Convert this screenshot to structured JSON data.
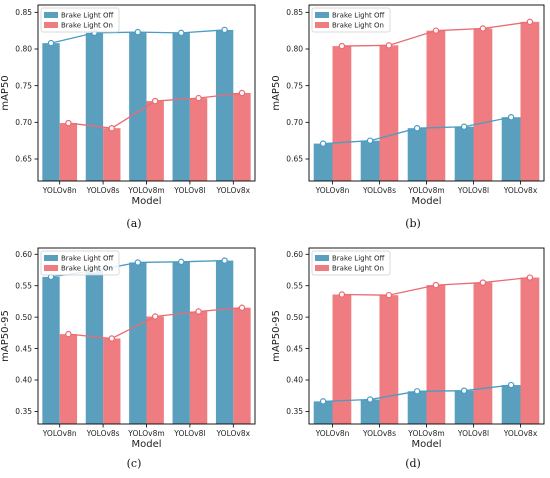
{
  "figure": {
    "captions": [
      "(a)",
      "(b)",
      "(c)",
      "(d)"
    ]
  },
  "colors": {
    "brake_light_off": "#5b9fbf",
    "brake_light_off_line": "#4a9cc4",
    "brake_light_on": "#ee7c80",
    "brake_light_on_line": "#ec6a72"
  },
  "chart_data": [
    {
      "type": "bar",
      "categories": [
        "YOLOv8n",
        "YOLOv8s",
        "YOLOv8m",
        "YOLOv8l",
        "YOLOv8x"
      ],
      "xlabel": "Model",
      "ylabel": "mAP50",
      "ylim": [
        0.62,
        0.86
      ],
      "yticks": [
        "0.65",
        "0.70",
        "0.75",
        "0.80",
        "0.85"
      ],
      "legend": "top-left",
      "series": [
        {
          "name": "Brake Light Off",
          "values": [
            0.808,
            0.822,
            0.823,
            0.822,
            0.826
          ]
        },
        {
          "name": "Brake Light On",
          "values": [
            0.699,
            0.692,
            0.729,
            0.733,
            0.74
          ]
        }
      ]
    },
    {
      "type": "bar",
      "categories": [
        "YOLOv8n",
        "YOLOv8s",
        "YOLOv8m",
        "YOLOv8l",
        "YOLOv8x"
      ],
      "xlabel": "Model",
      "ylabel": "mAP50",
      "ylim": [
        0.62,
        0.86
      ],
      "yticks": [
        "0.65",
        "0.70",
        "0.75",
        "0.80",
        "0.85"
      ],
      "legend": "top-left",
      "series": [
        {
          "name": "Brake Light Off",
          "values": [
            0.671,
            0.675,
            0.692,
            0.694,
            0.707
          ]
        },
        {
          "name": "Brake Light On",
          "values": [
            0.804,
            0.805,
            0.825,
            0.828,
            0.837
          ]
        }
      ]
    },
    {
      "type": "bar",
      "categories": [
        "YOLOv8n",
        "YOLOv8s",
        "YOLOv8m",
        "YOLOv8l",
        "YOLOv8x"
      ],
      "xlabel": "Model",
      "ylabel": "mAP50-95",
      "ylim": [
        0.33,
        0.61
      ],
      "yticks": [
        "0.35",
        "0.40",
        "0.45",
        "0.50",
        "0.55",
        "0.60"
      ],
      "legend": "top-left",
      "series": [
        {
          "name": "Brake Light Off",
          "values": [
            0.564,
            0.574,
            0.587,
            0.588,
            0.59
          ]
        },
        {
          "name": "Brake Light On",
          "values": [
            0.473,
            0.466,
            0.501,
            0.509,
            0.515
          ]
        }
      ]
    },
    {
      "type": "bar",
      "categories": [
        "YOLOv8n",
        "YOLOv8s",
        "YOLOv8m",
        "YOLOv8l",
        "YOLOv8x"
      ],
      "xlabel": "Model",
      "ylabel": "mAP50-95",
      "ylim": [
        0.33,
        0.61
      ],
      "yticks": [
        "0.35",
        "0.40",
        "0.45",
        "0.50",
        "0.55",
        "0.60"
      ],
      "legend": "top-left",
      "series": [
        {
          "name": "Brake Light Off",
          "values": [
            0.366,
            0.369,
            0.382,
            0.383,
            0.392
          ]
        },
        {
          "name": "Brake Light On",
          "values": [
            0.536,
            0.535,
            0.551,
            0.555,
            0.563
          ]
        }
      ]
    }
  ]
}
